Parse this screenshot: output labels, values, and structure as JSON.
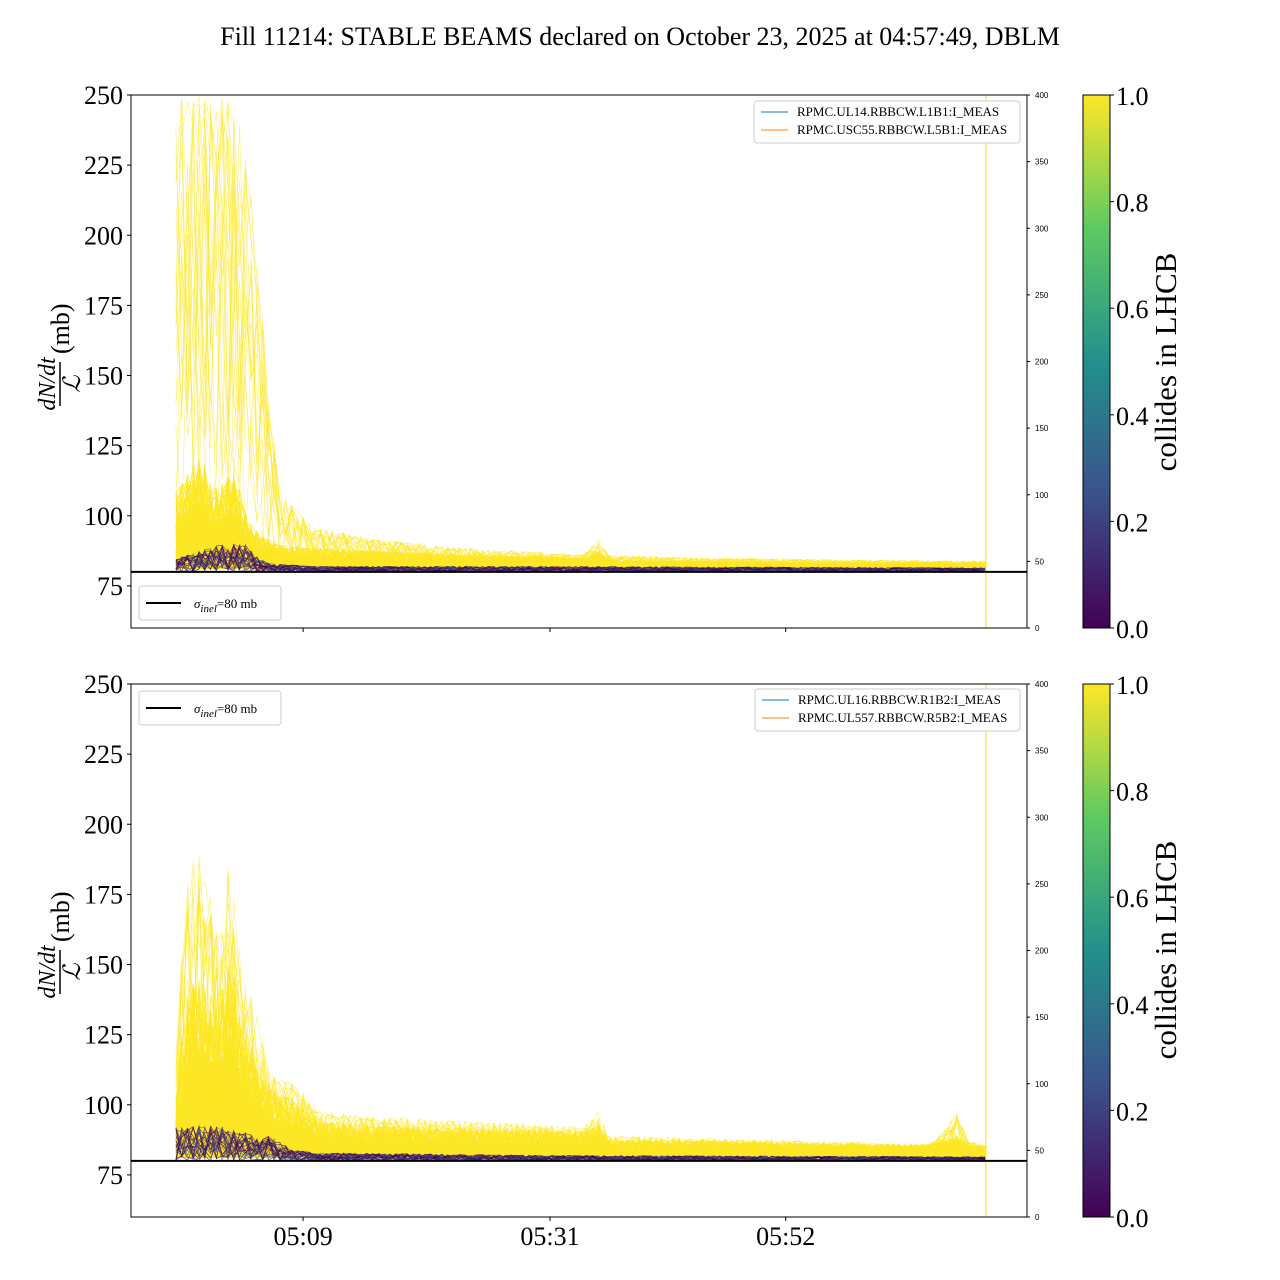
{
  "title": "Fill 11214: STABLE BEAMS declared on October 23, 2025 at 04:57:49, DBLM",
  "ylabel_numerator": "dN/dt",
  "ylabel_denominator": "ℒ",
  "ylabel_unit": "(mb)",
  "colorbar_label": "collides in LHCB",
  "colorbar_ticks": [
    "0.0",
    "0.2",
    "0.4",
    "0.6",
    "0.8",
    "1.0"
  ],
  "sigma_legend": {
    "symbol": "σ",
    "subscript": "inel",
    "text": "=80 mb"
  },
  "colors": {
    "collides": "#fde725",
    "non_colliding": "#440154",
    "reference_line": "#000000",
    "blue_current": "#1f77b4",
    "orange_current": "#ff7f0e",
    "viridis": [
      "#440154",
      "#3b528b",
      "#21918c",
      "#5ec962",
      "#fde725"
    ]
  },
  "chart_data": [
    {
      "type": "line",
      "panel": "top",
      "x_tick_labels": [
        "05:09",
        "05:31",
        "05:52"
      ],
      "xlim_time": [
        "04:53:40",
        "06:13:30"
      ],
      "ylim": [
        60,
        250
      ],
      "y_ticks": [
        75,
        100,
        125,
        150,
        175,
        200,
        225,
        250
      ],
      "y2lim": [
        0,
        400
      ],
      "y2_ticks": [
        0,
        50,
        100,
        150,
        200,
        250,
        300,
        350,
        400
      ],
      "reference_line": {
        "y": 80,
        "label": "σinel=80 mb"
      },
      "legend_current": [
        "RPMC.UL14.RBBCW.L1B1:I_MEAS",
        "RPMC.USC55.RBBCW.L5B1:I_MEAS"
      ],
      "legend_reference_position": "bottom-left",
      "legend_current_position": "top-right",
      "colliding_envelope": {
        "x": [
          "04:57:40",
          "04:59:00",
          "05:00:00",
          "05:01:00",
          "05:02:00",
          "05:03:00",
          "05:04:00",
          "05:05:00",
          "05:06:00",
          "05:07:00",
          "05:10:00",
          "05:15:00",
          "05:20:00",
          "05:25:00",
          "05:30:00",
          "05:34:00",
          "05:35:30",
          "05:36:00",
          "05:45:00",
          "05:55:00",
          "06:05:00",
          "06:09:50"
        ],
        "upper": [
          250,
          250,
          250,
          250,
          250,
          250,
          230,
          190,
          140,
          108,
          96,
          92,
          90,
          88,
          87,
          86,
          93,
          86,
          85,
          84.5,
          84,
          84
        ],
        "core_upper": [
          110,
          120,
          125,
          110,
          115,
          118,
          100,
          95,
          92,
          90,
          89,
          88,
          87,
          86,
          86,
          85,
          88,
          84.5,
          84,
          83.5,
          83.5,
          83.5
        ],
        "lower": [
          81,
          81,
          81,
          81,
          81,
          81,
          81,
          81,
          81,
          81,
          81,
          81,
          81,
          81,
          81,
          81,
          81,
          81,
          81,
          81,
          81,
          81
        ]
      },
      "noncolliding_envelope": {
        "x": [
          "04:57:40",
          "05:00:00",
          "05:02:00",
          "05:04:00",
          "05:05:00",
          "05:06:00",
          "05:10:00",
          "05:30:00",
          "06:09:50"
        ],
        "upper": [
          85,
          88,
          90,
          90,
          85,
          83,
          82,
          82,
          81.5
        ],
        "lower": [
          80,
          80,
          80,
          80,
          80,
          80,
          80,
          80,
          80
        ]
      },
      "current_spike": {
        "x": "06:09:50",
        "value": 400
      }
    },
    {
      "type": "line",
      "panel": "bottom",
      "x_tick_labels": [
        "05:09",
        "05:31",
        "05:52"
      ],
      "xlim_time": [
        "04:53:40",
        "06:13:30"
      ],
      "ylim": [
        60,
        250
      ],
      "y_ticks": [
        75,
        100,
        125,
        150,
        175,
        200,
        225,
        250
      ],
      "y2lim": [
        0,
        400
      ],
      "y2_ticks": [
        0,
        50,
        100,
        150,
        200,
        250,
        300,
        350,
        400
      ],
      "reference_line": {
        "y": 80,
        "label": "σinel=80 mb"
      },
      "legend_current": [
        "RPMC.UL16.RBBCW.R1B2:I_MEAS",
        "RPMC.UL557.RBBCW.R5B2:I_MEAS"
      ],
      "legend_reference_position": "top-left",
      "legend_current_position": "top-right",
      "colliding_envelope": {
        "x": [
          "04:57:40",
          "04:58:30",
          "04:59:30",
          "05:00:30",
          "05:01:30",
          "05:02:30",
          "05:03:30",
          "05:04:30",
          "05:05:00",
          "05:06:00",
          "05:07:00",
          "05:08:00",
          "05:10:30",
          "05:15:00",
          "05:25:00",
          "05:34:00",
          "05:35:30",
          "05:36:00",
          "05:45:00",
          "05:55:00",
          "06:05:00",
          "06:07:30",
          "06:08:00",
          "06:09:50"
        ],
        "upper": [
          120,
          175,
          195,
          180,
          160,
          190,
          150,
          140,
          130,
          112,
          110,
          108,
          98,
          96,
          94,
          92,
          99,
          89,
          88,
          87,
          86,
          98,
          87,
          86
        ],
        "core_upper": [
          105,
          140,
          150,
          145,
          140,
          160,
          130,
          120,
          115,
          108,
          105,
          104,
          95,
          93,
          92,
          91,
          94,
          88,
          87.5,
          86.5,
          86,
          90,
          86,
          85.5
        ],
        "lower": [
          81,
          81,
          81,
          81,
          81,
          81,
          81,
          81,
          81,
          81,
          81,
          81,
          81,
          81,
          81,
          81,
          81,
          81,
          81,
          81,
          81,
          81,
          81,
          81
        ]
      },
      "noncolliding_envelope": {
        "x": [
          "04:57:40",
          "05:00:00",
          "05:02:00",
          "05:04:00",
          "05:05:00",
          "05:06:00",
          "05:08:00",
          "05:10:00",
          "05:30:00",
          "06:09:50"
        ],
        "upper": [
          92,
          93,
          92,
          90,
          88,
          89,
          84,
          83,
          82,
          81.5
        ],
        "lower": [
          80,
          80,
          80,
          80,
          80,
          80,
          80,
          80,
          80,
          80
        ]
      },
      "current_spike": {
        "x": "06:09:50",
        "value": 400
      }
    }
  ]
}
